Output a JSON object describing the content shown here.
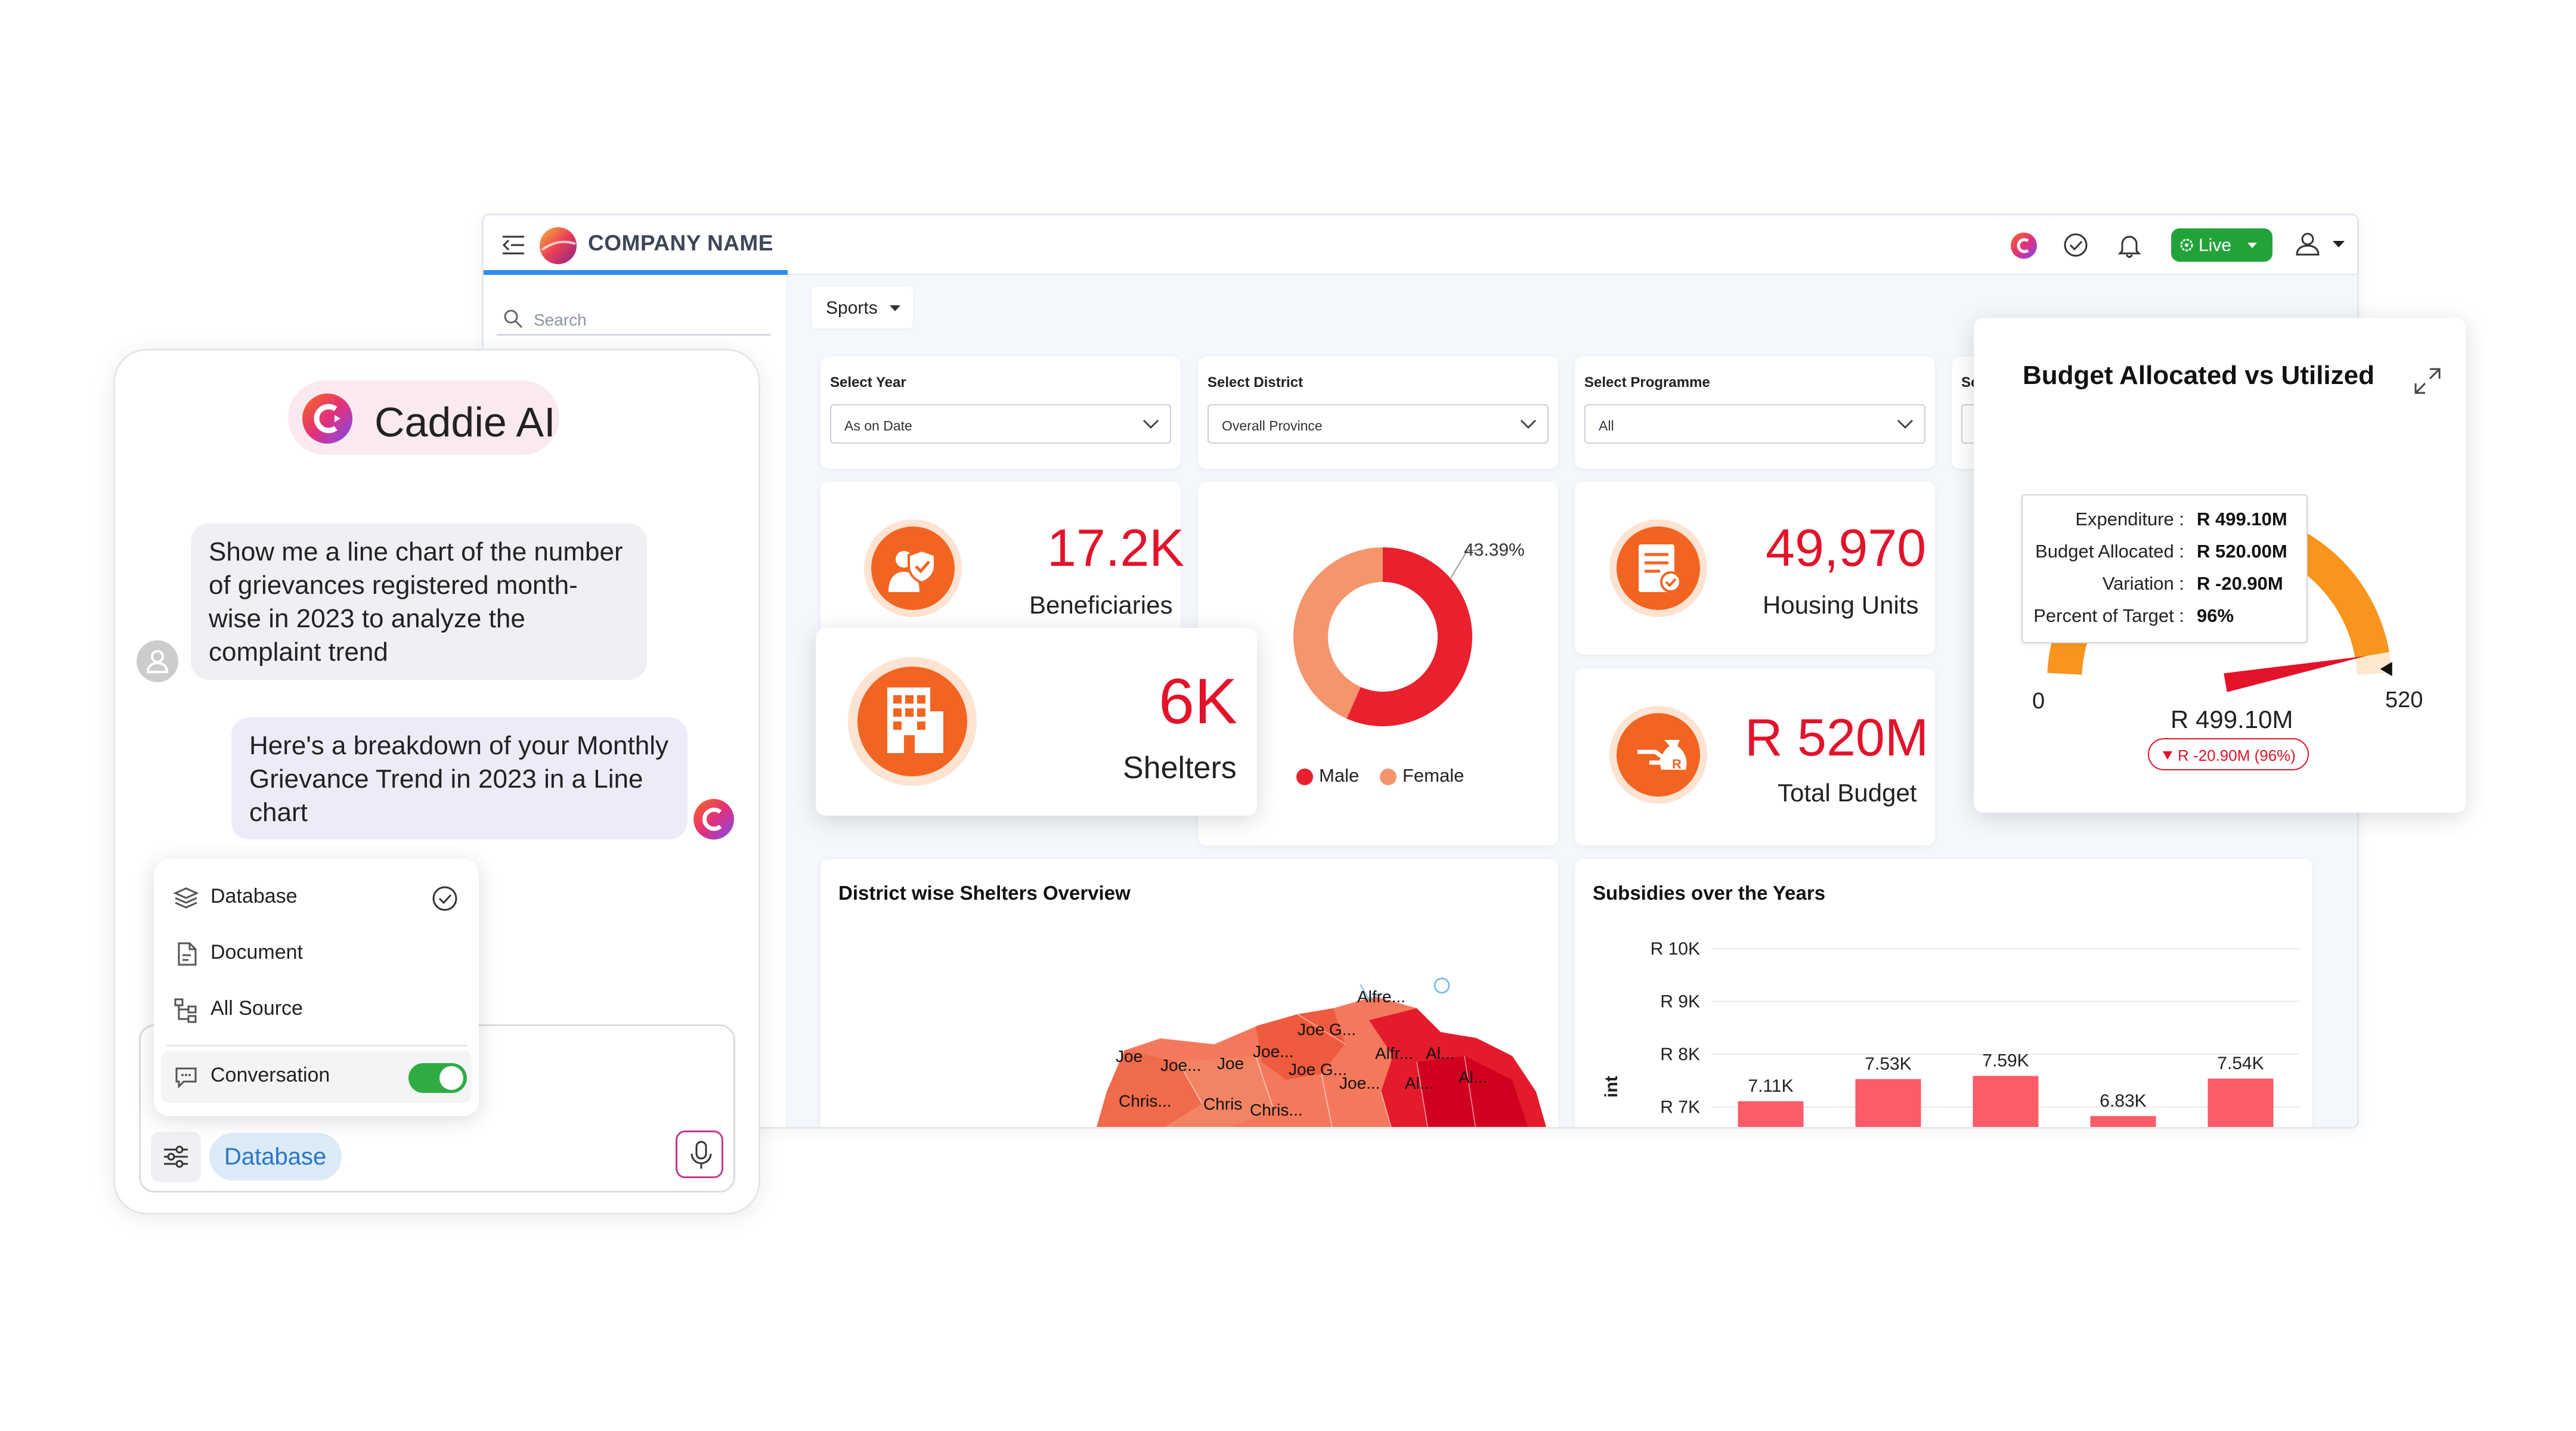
{
  "dashboard": {
    "brand": "COMPANY NAME",
    "live_label": "Live",
    "search_placeholder": "Search",
    "category": "Sports",
    "filters": [
      {
        "label": "Select Year",
        "value": "As on Date"
      },
      {
        "label": "Select District",
        "value": "Overall Province"
      },
      {
        "label": "Select Programme",
        "value": "All"
      },
      {
        "label": "Se",
        "value": ""
      }
    ],
    "kpis": {
      "beneficiaries": {
        "value": "17.2K",
        "label": "Beneficiaries"
      },
      "shelters": {
        "value": "6K",
        "label": "Shelters"
      },
      "housing": {
        "value": "49,970",
        "label": "Housing Units"
      },
      "budget": {
        "value": "R 520M",
        "label": "Total Budget"
      }
    },
    "donut": {
      "pct_label": "43.39%",
      "legend": [
        "Male",
        "Female"
      ],
      "colors": {
        "male": "#e9202e",
        "female": "#f4956b"
      },
      "female_pct": 43.39
    },
    "map_panel": {
      "title": "District wise Shelters Overview",
      "labels": [
        "Alfre...",
        "Joe G...",
        "Joe",
        "Joe...",
        "Joe",
        "Joe...",
        "Joe G...",
        "Joe...",
        "Alfr...",
        "Al...",
        "Al...",
        "Al...",
        "Chris...",
        "Chris",
        "Chris..."
      ]
    },
    "subsidies": {
      "title": "Subsidies over the Years",
      "axis_fragment": "int",
      "chart_data": {
        "type": "bar",
        "title": "Subsidies over the Years",
        "ytick_labels": [
          "R 10K",
          "R 9K",
          "R 8K",
          "R 7K"
        ],
        "bar_labels": [
          "7.11K",
          "7.53K",
          "7.59K",
          "6.83K",
          "7.54K"
        ],
        "values": [
          7.11,
          7.53,
          7.59,
          6.83,
          7.54
        ],
        "ylim": [
          6.5,
          10
        ]
      }
    }
  },
  "budget_card": {
    "title": "Budget Allocated vs Utilized",
    "tooltip": [
      {
        "key": "Expenditure :",
        "value": "R 499.10M"
      },
      {
        "key": "Budget Allocated :",
        "value": "R 520.00M"
      },
      {
        "key": "Variation :",
        "value": "R -20.90M"
      },
      {
        "key": "Percent of Target :",
        "value": "96%"
      }
    ],
    "gauge_min": "0",
    "gauge_max": "520",
    "gauge_value_label": "R 499.10M",
    "gauge_badge": "R -20.90M (96%)",
    "chart_data": {
      "type": "gauge",
      "min": 0,
      "max": 520,
      "value": 499.1,
      "unit": "M",
      "percent_of_target": 96
    }
  },
  "chat": {
    "title": "Caddie AI",
    "user_message": "Show me a line chart of the number of  grievances registered month-wise in 2023 to analyze the complaint trend",
    "ai_message": "Here's a breakdown of your Monthly Grievance Trend in a Line chart",
    "ai_message_full": "Here's a breakdown of your Monthly Grievance Trend in 2023 in a Line chart",
    "menu": [
      {
        "label": "Database",
        "selected": true
      },
      {
        "label": "Document",
        "selected": false
      },
      {
        "label": "All Source",
        "selected": false
      }
    ],
    "toggle_label": "Conversation",
    "toggle_on": true,
    "source_chip": "Database"
  }
}
